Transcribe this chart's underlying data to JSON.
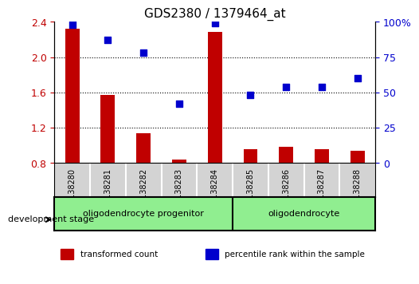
{
  "title": "GDS2380 / 1379464_at",
  "samples": [
    "GSM138280",
    "GSM138281",
    "GSM138282",
    "GSM138283",
    "GSM138284",
    "GSM138285",
    "GSM138286",
    "GSM138287",
    "GSM138288"
  ],
  "transformed_count": [
    2.32,
    1.57,
    1.14,
    0.84,
    2.29,
    0.96,
    0.98,
    0.96,
    0.94
  ],
  "percentile_rank": [
    98,
    87,
    78,
    42,
    99,
    48,
    54,
    54,
    60
  ],
  "ylim_left": [
    0.8,
    2.4
  ],
  "ylim_right": [
    0,
    100
  ],
  "yticks_left": [
    0.8,
    1.2,
    1.6,
    2.0,
    2.4
  ],
  "yticks_right": [
    0,
    25,
    50,
    75,
    100
  ],
  "groups": [
    {
      "label": "oligodendrocyte progenitor",
      "start": 0,
      "end": 5,
      "color": "#90EE90"
    },
    {
      "label": "oligodendrocyte",
      "start": 5,
      "end": 9,
      "color": "#90EE90"
    }
  ],
  "bar_color": "#C00000",
  "scatter_color": "#0000CD",
  "bar_width": 0.4,
  "xlabel": "development stage",
  "legend": [
    {
      "color": "#C00000",
      "label": "transformed count"
    },
    {
      "color": "#0000CD",
      "label": "percentile rank within the sample"
    }
  ],
  "background_color": "#FFFFFF",
  "grid_color": "#000000"
}
